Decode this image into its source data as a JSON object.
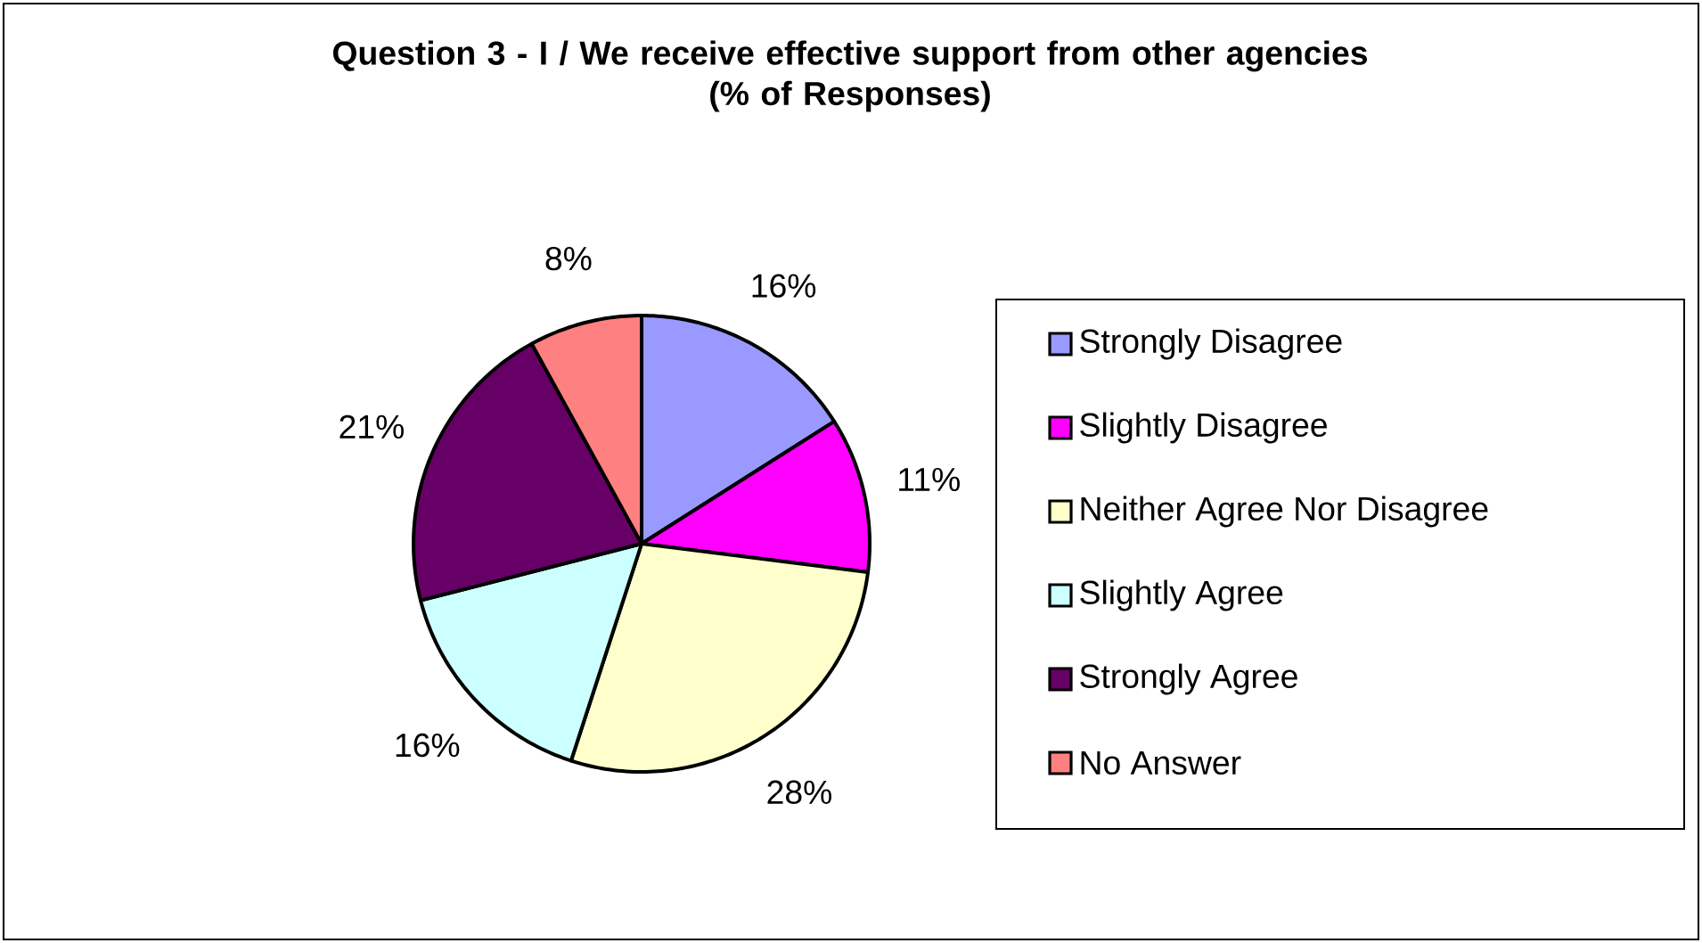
{
  "chart_data": {
    "type": "pie",
    "title": "Question 3 - I / We receive effective support from other agencies",
    "subtitle": "(% of Responses)",
    "categories": [
      "Strongly Disagree",
      "Slightly Disagree",
      "Neither Agree Nor Disagree",
      "Slightly Agree",
      "Strongly Agree",
      "No Answer"
    ],
    "values": [
      16,
      11,
      28,
      16,
      21,
      8
    ],
    "colors": [
      "#9999ff",
      "#ff00ff",
      "#ffffcc",
      "#ccffff",
      "#660066",
      "#ff8080"
    ],
    "value_labels": [
      "16%",
      "11%",
      "28%",
      "16%",
      "21%",
      "8%"
    ],
    "legend": "right"
  }
}
